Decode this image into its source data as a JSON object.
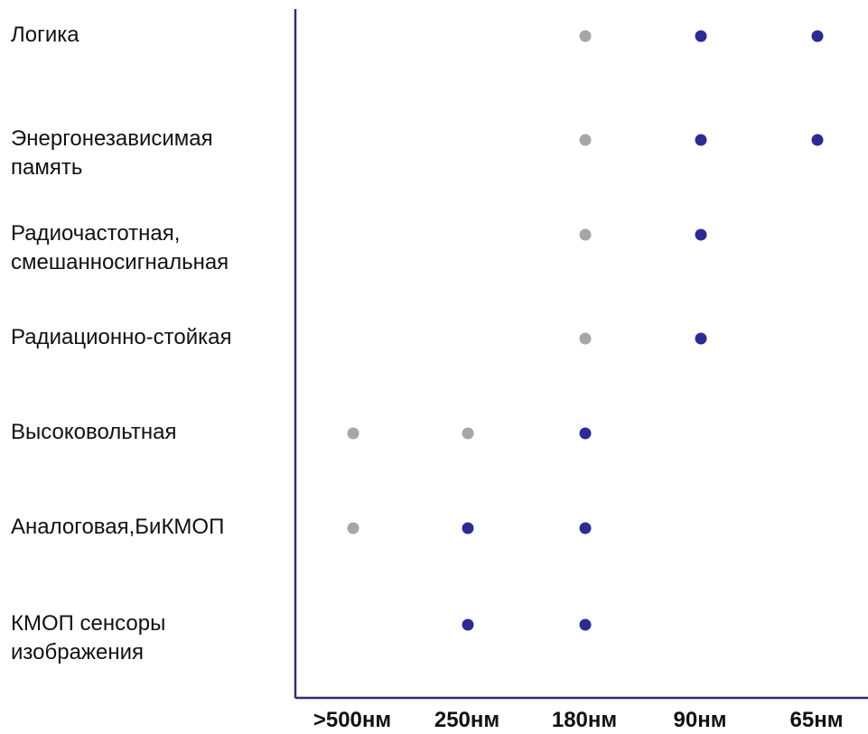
{
  "chart_data": {
    "type": "scatter",
    "title": "",
    "xlabel": "",
    "ylabel": "",
    "categories": [
      ">500нм",
      "250нм",
      "180нм",
      "90нм",
      "65нм"
    ],
    "rows": [
      {
        "label_lines": [
          "Логика"
        ],
        "points": [
          {
            "x": "180нм",
            "status": "gray"
          },
          {
            "x": "90нм",
            "status": "blue"
          },
          {
            "x": "65нм",
            "status": "blue"
          }
        ]
      },
      {
        "label_lines": [
          "Энергонезависимая",
          "память"
        ],
        "points": [
          {
            "x": "180нм",
            "status": "gray"
          },
          {
            "x": "90нм",
            "status": "blue"
          },
          {
            "x": "65нм",
            "status": "blue"
          }
        ]
      },
      {
        "label_lines": [
          "Радиочастотная,",
          "смешанносигнальная"
        ],
        "points": [
          {
            "x": "180нм",
            "status": "gray"
          },
          {
            "x": "90нм",
            "status": "blue"
          }
        ]
      },
      {
        "label_lines": [
          "Радиационно-стойкая"
        ],
        "points": [
          {
            "x": "180нм",
            "status": "gray"
          },
          {
            "x": "90нм",
            "status": "blue"
          }
        ]
      },
      {
        "label_lines": [
          "Высоковольтная"
        ],
        "points": [
          {
            "x": ">500нм",
            "status": "gray"
          },
          {
            "x": "250нм",
            "status": "gray"
          },
          {
            "x": "180нм",
            "status": "blue"
          }
        ]
      },
      {
        "label_lines": [
          "Аналоговая,БиКМОП"
        ],
        "points": [
          {
            "x": ">500нм",
            "status": "gray"
          },
          {
            "x": "250нм",
            "status": "blue"
          },
          {
            "x": "180нм",
            "status": "blue"
          }
        ]
      },
      {
        "label_lines": [
          "КМОП сенсоры",
          "изображения"
        ],
        "points": [
          {
            "x": "250нм",
            "status": "blue"
          },
          {
            "x": "180нм",
            "status": "blue"
          }
        ]
      }
    ],
    "legend": "none",
    "grid": false
  },
  "colors": {
    "blue": "#2E2A94",
    "gray": "#A6A6A6",
    "axis": "#2E2E6E",
    "text": "#111111"
  }
}
